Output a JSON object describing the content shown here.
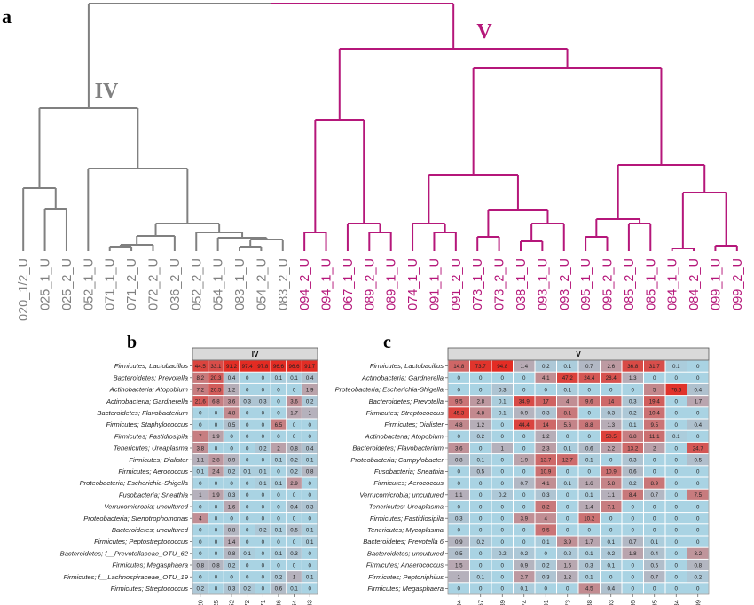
{
  "panels": {
    "a": "a",
    "b": "b",
    "c": "c"
  },
  "colors": {
    "clade_iv": "#808080",
    "clade_v": "#b5177a",
    "cell_low": "#a9d3e3",
    "cell_high": "#e32b22",
    "strip_bg": "#d9d9d9"
  },
  "chart_data": [
    {
      "type": "dendrogram",
      "panel": "a",
      "clades": [
        {
          "name": "IV",
          "leaves": [
            "020_1/2_U",
            "025_1_U",
            "025_2_U",
            "052_1_U",
            "071_1_U",
            "071_2_U",
            "072_2_U",
            "036_2_U",
            "052_2_U",
            "054_1_U",
            "083_1_U",
            "054_2_U",
            "083_2_U"
          ]
        },
        {
          "name": "V",
          "leaves": [
            "094_2_U",
            "094_1_U",
            "067_1_U",
            "089_2_U",
            "089_1_U",
            "074_1_U",
            "091_1_U",
            "091_2_U",
            "073_1_U",
            "073_2_U",
            "038_1_U",
            "093_1_U",
            "093_2_U",
            "095_1_U",
            "095_2_U",
            "085_2_U",
            "085_1_U",
            "084_1_U",
            "084_2_U",
            "099_1_U",
            "099_2_U"
          ]
        }
      ]
    },
    {
      "type": "heatmap",
      "panel": "b",
      "title": "IV",
      "columns": [
        "20",
        "25",
        "52",
        "72",
        "71",
        "36",
        "54",
        "83"
      ],
      "rows": [
        "Firmicutes; Lactobacillus",
        "Bacteroidetes; Prevotella",
        "Actinobacteria; Atopobium",
        "Actinobacteria; Gardnerella",
        "Bacteroidetes; Flavobacterium",
        "Firmicutes; Staphylococcus",
        "Firmicutes; Fastidiosipila",
        "Tenericutes; Ureaplasma",
        "Firmicutes; Dialister",
        "Firmicutes; Aerococcus",
        "Proteobacteria; Escherichia-Shigella",
        "Fusobacteria; Sneathia",
        "Verrucomicrobia; uncultured",
        "Proteobacteria; Stenotrophomonas",
        "Bacteroidetes; uncultured",
        "Firmicutes; Peptostreptococcus",
        "Bacteroidetes; f__Prevotellaceae_OTU_62",
        "Firmicutes; Megasphaera",
        "Firmicutes; f__Lachnospiraceae_OTU_19",
        "Firmicutes; Streptococcus"
      ],
      "values": [
        [
          44.5,
          33.1,
          91.2,
          97.4,
          97.8,
          96.6,
          96.6,
          91.7
        ],
        [
          8.2,
          20.3,
          0.4,
          0,
          0,
          0.1,
          0.1,
          0.4
        ],
        [
          7.2,
          20.5,
          1.2,
          0,
          0,
          0,
          0,
          1.9
        ],
        [
          21.6,
          6.8,
          3.6,
          0.3,
          0.3,
          0,
          3.6,
          0.2
        ],
        [
          0,
          0,
          4.8,
          0,
          0,
          0,
          1.7,
          1
        ],
        [
          0,
          0,
          0.5,
          0,
          0,
          6.5,
          0,
          0
        ],
        [
          7,
          1.9,
          0,
          0,
          0,
          0,
          0,
          0
        ],
        [
          3.8,
          0,
          0,
          0,
          0.2,
          2,
          0.8,
          0.4
        ],
        [
          1.1,
          2.8,
          0.9,
          0,
          0,
          0.1,
          0.2,
          0.1
        ],
        [
          0.1,
          2.4,
          0.2,
          0.1,
          0.1,
          0,
          0.2,
          0.8
        ],
        [
          0,
          0,
          0,
          0,
          0.1,
          0.1,
          2.9,
          0
        ],
        [
          1,
          1.9,
          0.3,
          0,
          0,
          0,
          0,
          0
        ],
        [
          0,
          0,
          1.6,
          0,
          0,
          0,
          0.4,
          0.3
        ],
        [
          4,
          0,
          0,
          0,
          0,
          0,
          0,
          0
        ],
        [
          0,
          0,
          0.8,
          0,
          0.2,
          0.1,
          0.5,
          0.1
        ],
        [
          0,
          0,
          1.4,
          0,
          0,
          0,
          0,
          0.1
        ],
        [
          0,
          0,
          0.8,
          0.1,
          0,
          0.1,
          0.3,
          0
        ],
        [
          0.8,
          0.8,
          0.2,
          0,
          0,
          0,
          0,
          0
        ],
        [
          0,
          0,
          0,
          0,
          0,
          0.2,
          1,
          0.1
        ],
        [
          0.2,
          0,
          0.3,
          0.2,
          0,
          0.6,
          0.1,
          0
        ]
      ]
    },
    {
      "type": "heatmap",
      "panel": "c",
      "title": "V",
      "columns": [
        "94",
        "67",
        "89",
        "74",
        "91",
        "73",
        "38",
        "93",
        "95",
        "85",
        "84",
        "99"
      ],
      "rows": [
        "Firmicutes; Lactobacillus",
        "Actinobacteria; Gardnerella",
        "Proteobacteria; Escherichia-Shigella",
        "Bacteroidetes; Prevotella",
        "Firmicutes; Streptococcus",
        "Firmicutes; Dialister",
        "Actinobacteria; Atopobium",
        "Bacteroidetes; Flavobacterium",
        "Proteobacteria; Campylobacter",
        "Fusobacteria; Sneathia",
        "Firmicutes; Aerococcus",
        "Verrucomicrobia; uncultured",
        "Tenericutes; Ureaplasma",
        "Firmicutes; Fastidiosipila",
        "Tenericutes; Mycoplasma",
        "Bacteroidetes; Prevotella 6",
        "Bacteroidetes; uncultured",
        "Firmicutes; Anaerococcus",
        "Firmicutes; Peptoniphilus",
        "Firmicutes; Megasphaera"
      ],
      "values": [
        [
          14.8,
          73.7,
          94.8,
          1.4,
          0.2,
          0.1,
          0.7,
          2.6,
          36.8,
          31.7,
          0.1,
          0
        ],
        [
          0,
          0,
          0,
          0,
          4.1,
          47.2,
          24.4,
          28.4,
          1.3,
          0,
          0,
          0
        ],
        [
          0,
          0,
          0.3,
          0,
          0,
          0.1,
          0,
          0,
          0,
          5,
          76.6,
          0.4
        ],
        [
          9.5,
          2.8,
          0.1,
          34.9,
          17,
          4,
          9.6,
          14,
          0.3,
          19.4,
          0,
          1.7
        ],
        [
          45.3,
          4.8,
          0.1,
          0.9,
          0.3,
          8.1,
          0,
          0.3,
          0.2,
          10.4,
          0,
          0
        ],
        [
          4.8,
          1.2,
          0,
          44.4,
          14,
          5.6,
          8.8,
          1.3,
          0.1,
          9.5,
          0,
          0.4
        ],
        [
          0,
          0.2,
          0,
          0,
          1.2,
          0,
          0,
          50.5,
          6.8,
          11.1,
          0.1,
          0
        ],
        [
          3.6,
          0,
          1,
          0,
          2.3,
          0.1,
          0.6,
          2.2,
          13.2,
          2,
          0,
          24.7
        ],
        [
          0.8,
          0.1,
          0,
          1.9,
          13.7,
          12.7,
          0.1,
          0,
          0.3,
          0,
          0,
          0.5
        ],
        [
          0,
          0.5,
          0,
          0,
          10.9,
          0,
          0,
          10.9,
          0.6,
          0,
          0,
          0
        ],
        [
          0,
          0,
          0,
          0.7,
          4.1,
          0.1,
          1.6,
          5.8,
          0.2,
          8.9,
          0,
          0
        ],
        [
          1.1,
          0,
          0.2,
          0,
          0.3,
          0,
          0.1,
          1.1,
          8.4,
          0.7,
          0,
          7.5
        ],
        [
          0,
          0,
          0,
          0,
          8.2,
          0,
          1.4,
          7.1,
          0,
          0,
          0,
          0
        ],
        [
          0.3,
          0,
          0,
          3.9,
          4,
          0,
          10.2,
          0,
          0,
          0,
          0,
          0
        ],
        [
          0,
          0,
          0,
          0,
          9.5,
          0,
          0,
          0,
          0,
          0,
          0,
          0
        ],
        [
          0.9,
          0.2,
          0,
          0,
          0.1,
          3.9,
          1.7,
          0.1,
          0.7,
          0.1,
          0,
          0
        ],
        [
          0.5,
          0,
          0.2,
          0.2,
          0,
          0.2,
          0.1,
          0.2,
          1.8,
          0.4,
          0,
          3.2
        ],
        [
          1.5,
          0,
          0,
          0.9,
          0.2,
          1.6,
          0.3,
          0.1,
          0,
          0.5,
          0,
          0.8
        ],
        [
          1,
          0.1,
          0,
          2.7,
          0.3,
          1.2,
          0.1,
          0,
          0,
          0.7,
          0,
          0.2
        ],
        [
          0,
          0,
          0,
          0.1,
          0,
          0,
          4.5,
          0.4,
          0,
          0,
          0,
          0
        ]
      ]
    }
  ]
}
